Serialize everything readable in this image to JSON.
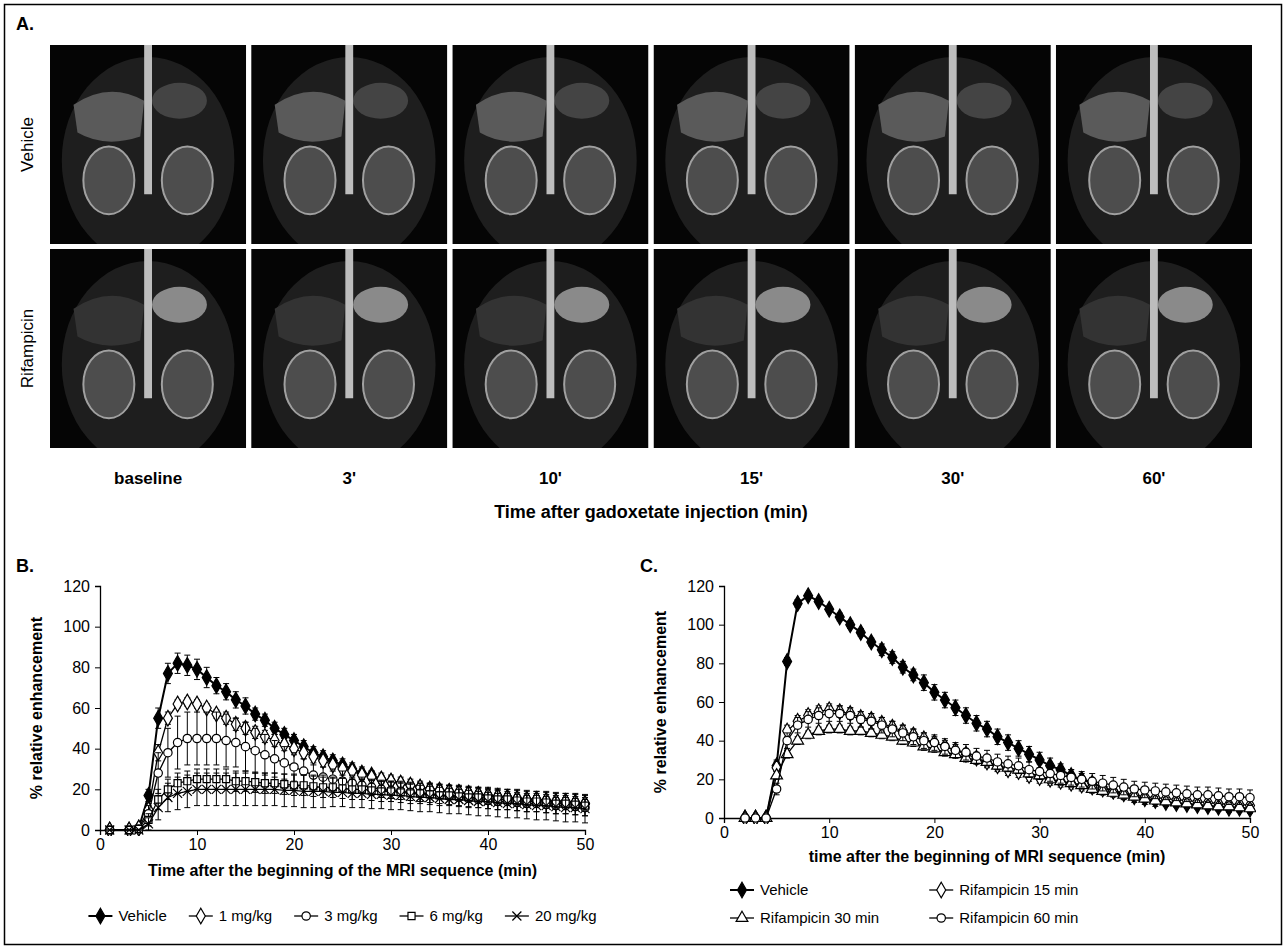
{
  "chart_data": [
    {
      "type": "image_grid",
      "panel": "A.",
      "rows": [
        "Vehicle",
        "Rifampicin"
      ],
      "columns": [
        "baseline",
        "3'",
        "10'",
        "15'",
        "30'",
        "60'"
      ],
      "xlabel": "Time after gadoxetate injection (min)"
    },
    {
      "type": "line",
      "panel": "B.",
      "xlabel": "Time after the beginning of the MRI sequence (min)",
      "ylabel": "% relative enhancement",
      "xlim": [
        0,
        50
      ],
      "xticks": [
        0,
        10,
        20,
        30,
        40,
        50
      ],
      "ylim": [
        0,
        120
      ],
      "yticks": [
        0,
        20,
        40,
        60,
        80,
        100,
        120
      ],
      "grid": false,
      "legend": "bottom",
      "x": [
        1,
        3,
        4,
        5,
        6,
        7,
        8,
        9,
        10,
        11,
        12,
        13,
        14,
        15,
        16,
        17,
        18,
        19,
        20,
        21,
        22,
        23,
        24,
        25,
        26,
        27,
        28,
        29,
        30,
        31,
        32,
        33,
        34,
        35,
        36,
        37,
        38,
        39,
        40,
        41,
        42,
        43,
        44,
        45,
        46,
        47,
        48,
        49,
        50
      ],
      "series": [
        {
          "name": "Vehicle",
          "color": "#000000",
          "marker": "filled-diamond",
          "line_style": "solid",
          "values": [
            0,
            0,
            1,
            17,
            55,
            77,
            82,
            81,
            79,
            75,
            71,
            68,
            64,
            61,
            57,
            54,
            50,
            47,
            44,
            41,
            38,
            36,
            34,
            32,
            30,
            28,
            27,
            25,
            24,
            23,
            22,
            21,
            20,
            19.5,
            19,
            18.5,
            18,
            17.5,
            17,
            16.5,
            16,
            15.5,
            15,
            15,
            14.5,
            14,
            14,
            13.5,
            13
          ],
          "errors": [
            0,
            0,
            0.5,
            3,
            5,
            5,
            5,
            5,
            5,
            5,
            4,
            4,
            4,
            4,
            3,
            3,
            3,
            3,
            3,
            3,
            3,
            3,
            3,
            3,
            3,
            3,
            2,
            2,
            2,
            2,
            2,
            2,
            2,
            2,
            2,
            2,
            2,
            2,
            2,
            2,
            2,
            2,
            2,
            2,
            2,
            2,
            2,
            2,
            2
          ]
        },
        {
          "name": "1 mg/kg",
          "color": "#000000",
          "marker": "open-diamond",
          "line_style": "solid",
          "values": [
            0,
            0,
            1,
            10,
            38,
            55,
            62,
            63,
            62,
            60,
            57,
            55,
            52,
            50,
            48,
            46,
            44,
            42,
            40,
            38,
            36,
            34,
            32,
            30,
            29,
            27,
            26,
            25,
            24,
            23,
            22,
            21,
            20,
            19.5,
            19,
            18.5,
            18,
            17.5,
            17,
            16.5,
            16,
            15.5,
            15,
            15,
            14.5,
            14,
            14,
            13.5,
            13
          ],
          "errors": [
            0,
            0,
            0.5,
            3,
            4,
            3,
            2,
            2,
            2,
            2,
            2,
            3,
            3,
            3,
            3,
            3,
            3,
            3,
            3,
            3,
            3,
            3,
            3,
            3,
            3,
            3,
            3,
            3,
            3,
            3,
            3,
            3,
            3,
            3,
            3,
            3,
            3,
            3,
            3,
            3,
            3,
            3,
            3,
            3,
            3,
            3,
            3,
            3,
            3
          ]
        },
        {
          "name": "3 mg/kg",
          "color": "#000000",
          "marker": "open-circle",
          "line_style": "solid",
          "values": [
            0,
            0,
            0.5,
            8,
            28,
            38,
            43,
            45,
            45,
            45,
            45,
            44,
            43,
            41,
            39,
            37,
            35,
            33,
            31,
            29,
            27,
            26,
            25,
            24,
            23,
            22,
            21,
            20,
            19.5,
            19,
            18.5,
            18,
            17.5,
            17,
            16.5,
            16,
            15.5,
            15,
            14.5,
            14,
            14,
            13.5,
            13,
            13,
            12.5,
            12,
            12,
            11.5,
            11
          ],
          "errors": [
            0,
            0,
            0.5,
            4,
            10,
            12,
            13,
            13,
            13,
            13,
            13,
            13,
            12,
            12,
            11,
            10,
            9,
            8,
            7,
            6,
            5,
            5,
            5,
            5,
            4,
            4,
            4,
            4,
            4,
            4,
            4,
            4,
            4,
            4,
            4,
            4,
            4,
            4,
            4,
            4,
            4,
            4,
            4,
            4,
            4,
            4,
            4,
            4,
            4
          ]
        },
        {
          "name": "6 mg/kg",
          "color": "#000000",
          "marker": "open-square",
          "line_style": "solid",
          "values": [
            0,
            0,
            0.5,
            5,
            15,
            20,
            23,
            24,
            25,
            25,
            25,
            25,
            24,
            24,
            23.5,
            23,
            23,
            22.5,
            22,
            22,
            21.5,
            21,
            21,
            20.5,
            20,
            20,
            19.5,
            19,
            19,
            18.5,
            18,
            18,
            17.5,
            17,
            17,
            16.5,
            16,
            16,
            15.5,
            15,
            15,
            14.5,
            14,
            14,
            13.5,
            13,
            13,
            12.5,
            12
          ],
          "errors": [
            0,
            0,
            0.5,
            3,
            5,
            5,
            5,
            5,
            5,
            5,
            5,
            5,
            5,
            5,
            5,
            5,
            5,
            5,
            5,
            5,
            5,
            5,
            5,
            5,
            5,
            5,
            5,
            5,
            5,
            5,
            5,
            5,
            5,
            5,
            5,
            5,
            5,
            5,
            5,
            5,
            5,
            5,
            5,
            5,
            5,
            5,
            5,
            5,
            5
          ]
        },
        {
          "name": "20 mg/kg",
          "color": "#000000",
          "marker": "x",
          "line_style": "solid",
          "values": [
            0,
            0,
            0,
            3,
            11,
            16,
            18,
            19,
            20,
            20,
            20,
            20,
            20,
            20,
            20,
            20,
            20,
            19.5,
            19.5,
            19,
            19,
            19,
            18.5,
            18.5,
            18,
            18,
            17.5,
            17.5,
            17,
            17,
            16.5,
            16,
            16,
            15.5,
            15,
            15,
            14.5,
            14,
            14,
            13.5,
            13,
            13,
            12.5,
            12,
            12,
            11.5,
            11,
            11,
            10.5
          ],
          "errors": [
            0,
            0,
            0,
            3,
            6,
            7,
            8,
            8,
            8,
            8,
            8,
            8,
            8,
            8,
            8,
            8,
            8,
            8,
            8,
            8,
            8,
            8,
            7,
            7,
            7,
            7,
            7,
            7,
            7,
            7,
            7,
            7,
            7,
            7,
            7,
            7,
            7,
            7,
            7,
            7,
            7,
            7,
            7,
            7,
            7,
            7,
            7,
            7,
            7
          ]
        }
      ]
    },
    {
      "type": "line",
      "panel": "C.",
      "xlabel": "time after the beginning of MRI sequence (min)",
      "ylabel": "% relative enhancement",
      "xlim": [
        0,
        50
      ],
      "xticks": [
        0,
        10,
        20,
        30,
        40,
        50
      ],
      "ylim": [
        0,
        120
      ],
      "yticks": [
        0,
        20,
        40,
        60,
        80,
        100,
        120
      ],
      "grid": false,
      "legend": "bottom",
      "x": [
        2,
        3,
        4,
        5,
        6,
        7,
        8,
        9,
        10,
        11,
        12,
        13,
        14,
        15,
        16,
        17,
        18,
        19,
        20,
        21,
        22,
        23,
        24,
        25,
        26,
        27,
        28,
        29,
        30,
        31,
        32,
        33,
        34,
        35,
        36,
        37,
        38,
        39,
        40,
        41,
        42,
        43,
        44,
        45,
        46,
        47,
        48,
        49,
        50
      ],
      "series": [
        {
          "name": "Vehicle",
          "color": "#000000",
          "marker": "filled-diamond",
          "line_style": "solid",
          "values": [
            0,
            0,
            0,
            27,
            81,
            111,
            115,
            112,
            108,
            104,
            100,
            96,
            91,
            87,
            83,
            78,
            74,
            70,
            65,
            61,
            57,
            53,
            49,
            46,
            42,
            39,
            36,
            33,
            30,
            27,
            25,
            22,
            20,
            18,
            16,
            14,
            12.5,
            11,
            10,
            9,
            8,
            7.5,
            7,
            6.5,
            6,
            5.5,
            5,
            5,
            4.5
          ],
          "errors": [
            0,
            0,
            0,
            3,
            2,
            2,
            1,
            1,
            1,
            2,
            2,
            2,
            2,
            3,
            3,
            3,
            3,
            4,
            4,
            4,
            4,
            4,
            4,
            4,
            4,
            4,
            4,
            4,
            4,
            4,
            3,
            3,
            3,
            3,
            3,
            3,
            3,
            3,
            3,
            3,
            2,
            2,
            2,
            2,
            2,
            2,
            2,
            2,
            2
          ]
        },
        {
          "name": "Rifampicin 15 min",
          "color": "#000000",
          "marker": "open-diamond",
          "line_style": "solid",
          "values": [
            0,
            0,
            0,
            26,
            45,
            50,
            53,
            55,
            56,
            55,
            54,
            52,
            51,
            49,
            47,
            45,
            43,
            41,
            39,
            37,
            35,
            33,
            31,
            29,
            27,
            25,
            24,
            22,
            21,
            20,
            19,
            18,
            17,
            16,
            15,
            14,
            13,
            12,
            11,
            10.5,
            10,
            9.5,
            9,
            8.5,
            8,
            7.5,
            7,
            7,
            6.5
          ],
          "errors": [
            0,
            0,
            0,
            3,
            3,
            3,
            3,
            3,
            3,
            3,
            3,
            3,
            3,
            3,
            3,
            3,
            3,
            3,
            3,
            3,
            3,
            3,
            3,
            3,
            3,
            3,
            3,
            3,
            3,
            3,
            3,
            3,
            3,
            3,
            3,
            3,
            3,
            3,
            3,
            3,
            3,
            3,
            3,
            3,
            3,
            3,
            3,
            3,
            3
          ]
        },
        {
          "name": "Rifampicin 30 min",
          "color": "#000000",
          "marker": "open-triangle",
          "line_style": "solid",
          "values": [
            0,
            0,
            0,
            22,
            33,
            40,
            43,
            45,
            46,
            46,
            45,
            45,
            44,
            43,
            42,
            40,
            39,
            37,
            36,
            34,
            33,
            31,
            30,
            29,
            27,
            26,
            25,
            23,
            22,
            20,
            19,
            18,
            17,
            15,
            14,
            13,
            12,
            11,
            10,
            9,
            8.5,
            8,
            7.5,
            7,
            6.5,
            6,
            6,
            5.5,
            5
          ],
          "errors": [
            0,
            0,
            0,
            2,
            2,
            2,
            2,
            2,
            2,
            2,
            2,
            2,
            2,
            2,
            2,
            2,
            2,
            2,
            2,
            2,
            2,
            2,
            2,
            2,
            2,
            2,
            2,
            2,
            2,
            2,
            2,
            2,
            2,
            2,
            2,
            2,
            2,
            2,
            2,
            2,
            2,
            2,
            2,
            2,
            2,
            2,
            2,
            2,
            2
          ]
        },
        {
          "name": "Rifampicin 60 min",
          "color": "#000000",
          "marker": "open-circle",
          "line_style": "solid",
          "values": [
            0,
            0,
            0,
            15,
            40,
            48,
            51,
            53,
            54,
            54,
            53,
            51,
            50,
            48,
            46,
            44,
            42,
            40,
            39,
            37,
            35,
            34,
            32,
            31,
            29,
            28,
            27,
            25,
            24,
            23,
            22,
            21,
            20,
            19,
            18,
            17,
            16,
            15,
            14.5,
            14,
            13.5,
            13,
            12.5,
            12,
            12,
            11.5,
            11,
            11,
            10.5
          ],
          "errors": [
            0,
            0,
            0,
            3,
            4,
            4,
            4,
            4,
            4,
            4,
            4,
            4,
            4,
            4,
            4,
            4,
            4,
            4,
            4,
            4,
            4,
            4,
            4,
            4,
            4,
            4,
            4,
            4,
            4,
            4,
            4,
            4,
            4,
            4,
            4,
            4,
            4,
            4,
            4,
            4,
            4,
            4,
            4,
            4,
            4,
            4,
            4,
            4,
            4
          ]
        }
      ]
    }
  ]
}
